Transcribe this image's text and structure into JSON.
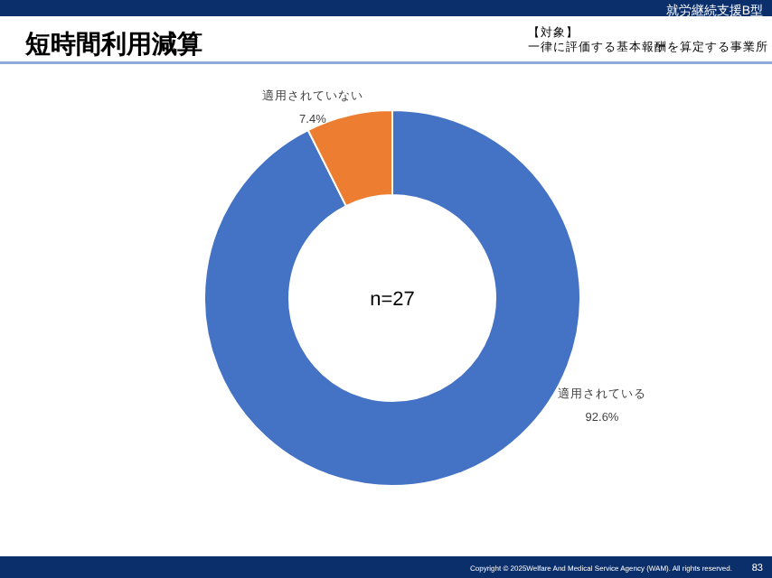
{
  "chart_data": {
    "type": "donut",
    "title": "短時間利用減算",
    "subtitle": "【対象】",
    "categories": [
      "適用されている",
      "適用されていない"
    ],
    "values": [
      92.6,
      7.4
    ],
    "colors": [
      "#4472c4",
      "#ed7d31"
    ],
    "value_labels": [
      "92.6%",
      "7.4%"
    ],
    "annotations": [
      "就労継続支援B型",
      "n=27",
      "Copyright © 2025Welfare And Medical Service Agency (WAM). All rights reserved.",
      "83",
      "一律に評価する基本報酬を算定する事業所"
    ]
  }
}
